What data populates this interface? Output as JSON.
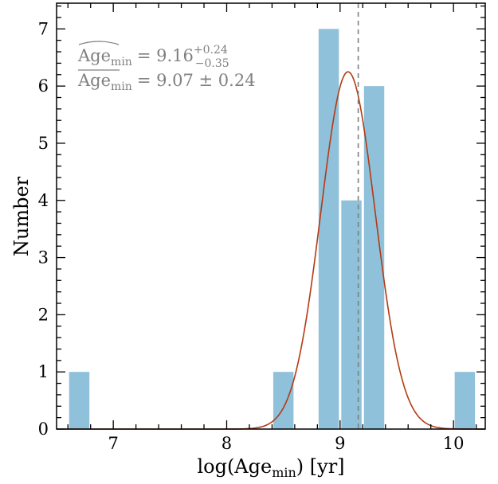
{
  "chart_data": {
    "type": "bar",
    "title": "",
    "xlabel_main": "log(Age",
    "xlabel_sub": "min",
    "xlabel_tail": ") [yr]",
    "ylabel": "Number",
    "xlim": [
      6.5,
      10.28
    ],
    "ylim": [
      0,
      7.45
    ],
    "xticks": [
      7,
      8,
      9,
      10
    ],
    "yticks": [
      0,
      1,
      2,
      3,
      4,
      5,
      6,
      7
    ],
    "grid": false,
    "bar_color": "#8fc1da",
    "bins": [
      {
        "x0": 6.6,
        "x1": 6.8,
        "count": 1
      },
      {
        "x0": 8.4,
        "x1": 8.6,
        "count": 1
      },
      {
        "x0": 8.8,
        "x1": 9.0,
        "count": 7
      },
      {
        "x0": 9.0,
        "x1": 9.2,
        "count": 4
      },
      {
        "x0": 9.2,
        "x1": 9.4,
        "count": 6
      },
      {
        "x0": 10.0,
        "x1": 10.2,
        "count": 1
      }
    ],
    "fit_curve": {
      "type": "gaussian",
      "mean": 9.07,
      "sigma": 0.24,
      "amplitude": 6.25,
      "color": "#b33a13"
    },
    "median_line": {
      "x": 9.16,
      "color": "#808080",
      "style": "dashed"
    },
    "annotations": {
      "median": {
        "label": "Age",
        "sub": "min",
        "eq": "= 9.16",
        "sup": "+0.24",
        "inf": "−0.35"
      },
      "mean": {
        "label": "Age",
        "sub": "min",
        "eq": "= 9.07 ± 0.24"
      }
    }
  }
}
